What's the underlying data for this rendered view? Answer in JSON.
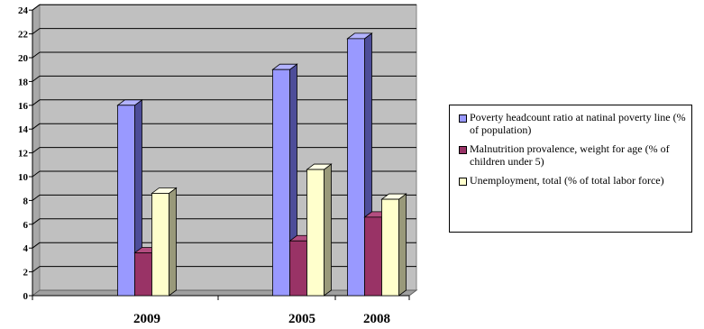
{
  "chart_data": {
    "type": "bar",
    "categories": [
      "2009",
      "2005",
      "2008"
    ],
    "series": [
      {
        "name": "Poverty headcount ratio at natinal poverty line (% of population)",
        "values": [
          16,
          19,
          21.6
        ],
        "color": "#9999ff",
        "side": "#4d4d99",
        "topc": "#b3b3ff"
      },
      {
        "name": "Malnutrition provalence, weight for age (% of children under 5)",
        "values": [
          3.6,
          4.6,
          6.6
        ],
        "color": "#993366",
        "side": "#4d1933",
        "topc": "#b34d80"
      },
      {
        "name": "Unemployment, total (% of total labor force)",
        "values": [
          8.6,
          10.6,
          8.1
        ],
        "color": "#ffffcc",
        "side": "#99997a",
        "topc": "#ffffe6"
      }
    ],
    "yticks": [
      "0",
      "2",
      "4",
      "6",
      "8",
      "10",
      "12",
      "14",
      "16",
      "18",
      "20",
      "22",
      "24"
    ],
    "ylim": [
      0,
      24
    ],
    "grid": true,
    "legend": "right",
    "title": "",
    "xlabel": "",
    "ylabel": "",
    "plot_background": "#c0c0c0"
  }
}
